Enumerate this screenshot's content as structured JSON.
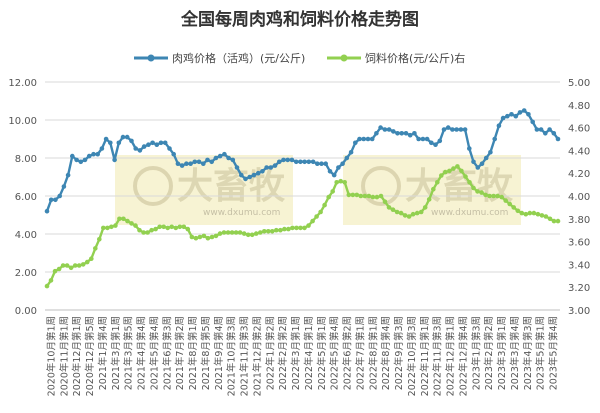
{
  "chart_data": {
    "type": "line",
    "title": "全国每周肉鸡和饲料价格走势图",
    "xlabel": "",
    "ylabel": "",
    "y_left": {
      "ylim": [
        0,
        12
      ],
      "ticks": [
        "0.00",
        "2.00",
        "4.00",
        "6.00",
        "8.00",
        "10.00",
        "12.00"
      ]
    },
    "y_right": {
      "ylim": [
        3.0,
        5.0
      ],
      "ticks": [
        "3.00",
        "3.20",
        "3.40",
        "3.60",
        "3.80",
        "4.00",
        "4.20",
        "4.40",
        "4.60",
        "4.80",
        "5.00"
      ]
    },
    "grid": true,
    "legend_position": "top",
    "x_labels": [
      "2020年10月第1周",
      "2020年11月第1周",
      "2020年12月第1周",
      "2020年12月第5周",
      "2021年1月第4周",
      "2021年3月第1周",
      "2021年3月第5周",
      "2021年4月第4周",
      "2021年5月第4周",
      "2021年6月第3周",
      "2021年7月第2周",
      "2021年8月第1周",
      "2021年8月第5周",
      "2021年9月第4周",
      "2021年10月第3周",
      "2021年11月第3周",
      "2021年12月第2周",
      "2022年1月第2周",
      "2022年2月第2周",
      "2022年3月第1周",
      "2022年4月第1周",
      "2022年5月第1周",
      "2022年5月第4周",
      "2022年6月第2周",
      "2022年7月第1周",
      "2022年8月第1周",
      "2022年8月第4周",
      "2022年9月第3周",
      "2022年10月第3周",
      "2022年11月第1周",
      "2022年11月第3周",
      "2022年12月第1周",
      "2022年12月第4周",
      "2023年1月第3周",
      "2023年2月第2周",
      "2023年3月第1周",
      "2023年3月第4周",
      "2023年4月第3周",
      "2023年5月第1周",
      "2023年5月第4周"
    ],
    "series": [
      {
        "name": "肉鸡价格（活鸡）(元/公斤)",
        "axis": "left",
        "color": "#3d86b3",
        "values": [
          5.2,
          5.8,
          5.8,
          6.0,
          6.5,
          7.1,
          8.1,
          7.9,
          7.8,
          7.9,
          8.1,
          8.2,
          8.2,
          8.5,
          9.0,
          8.8,
          7.9,
          8.8,
          9.1,
          9.1,
          8.9,
          8.5,
          8.4,
          8.6,
          8.7,
          8.8,
          8.7,
          8.8,
          8.8,
          8.5,
          8.2,
          7.7,
          7.6,
          7.7,
          7.7,
          7.8,
          7.8,
          7.7,
          7.9,
          7.8,
          8.0,
          8.1,
          8.2,
          8.0,
          7.9,
          7.5,
          7.1,
          6.9,
          7.0,
          7.1,
          7.2,
          7.3,
          7.5,
          7.5,
          7.6,
          7.8,
          7.9,
          7.9,
          7.9,
          7.8,
          7.8,
          7.8,
          7.8,
          7.8,
          7.7,
          7.7,
          7.7,
          7.3,
          7.1,
          7.5,
          7.7,
          8.0,
          8.3,
          8.8,
          9.0,
          9.0,
          9.0,
          9.0,
          9.3,
          9.6,
          9.5,
          9.5,
          9.4,
          9.3,
          9.3,
          9.3,
          9.2,
          9.3,
          9.0,
          9.0,
          9.0,
          8.8,
          8.7,
          8.9,
          9.5,
          9.6,
          9.5,
          9.5,
          9.5,
          9.5,
          8.5,
          7.8,
          7.5,
          7.7,
          8.0,
          8.3,
          9.0,
          9.7,
          10.1,
          10.2,
          10.3,
          10.2,
          10.4,
          10.5,
          10.3,
          9.9,
          9.5,
          9.5,
          9.3,
          9.5,
          9.3,
          9.0
        ]
      },
      {
        "name": "饲料价格(元/公斤)右",
        "axis": "right",
        "color": "#92d050",
        "values": [
          3.21,
          3.26,
          3.34,
          3.36,
          3.39,
          3.39,
          3.37,
          3.39,
          3.39,
          3.4,
          3.42,
          3.45,
          3.54,
          3.62,
          3.72,
          3.72,
          3.73,
          3.74,
          3.8,
          3.8,
          3.78,
          3.76,
          3.74,
          3.7,
          3.68,
          3.68,
          3.7,
          3.71,
          3.73,
          3.73,
          3.72,
          3.73,
          3.72,
          3.73,
          3.73,
          3.71,
          3.64,
          3.63,
          3.64,
          3.65,
          3.63,
          3.64,
          3.65,
          3.67,
          3.68,
          3.68,
          3.68,
          3.68,
          3.68,
          3.67,
          3.66,
          3.66,
          3.67,
          3.68,
          3.69,
          3.69,
          3.69,
          3.7,
          3.7,
          3.71,
          3.71,
          3.72,
          3.72,
          3.72,
          3.72,
          3.74,
          3.78,
          3.82,
          3.86,
          3.92,
          3.99,
          4.04,
          4.12,
          4.13,
          4.12,
          4.01,
          4.01,
          4.01,
          4.0,
          4.0,
          4.0,
          3.99,
          3.99,
          4.0,
          3.95,
          3.9,
          3.88,
          3.86,
          3.85,
          3.83,
          3.82,
          3.84,
          3.85,
          3.86,
          3.9,
          3.97,
          4.06,
          4.12,
          4.18,
          4.21,
          4.22,
          4.24,
          4.26,
          4.22,
          4.17,
          4.12,
          4.07,
          4.04,
          4.03,
          4.01,
          4.0,
          4.0,
          4.0,
          3.99,
          3.96,
          3.93,
          3.9,
          3.87,
          3.85,
          3.84,
          3.85,
          3.85,
          3.84,
          3.83,
          3.82,
          3.8,
          3.78,
          3.78
        ]
      }
    ]
  },
  "watermark": {
    "brand": "大畜牧",
    "url": "www.dxumu.com"
  }
}
